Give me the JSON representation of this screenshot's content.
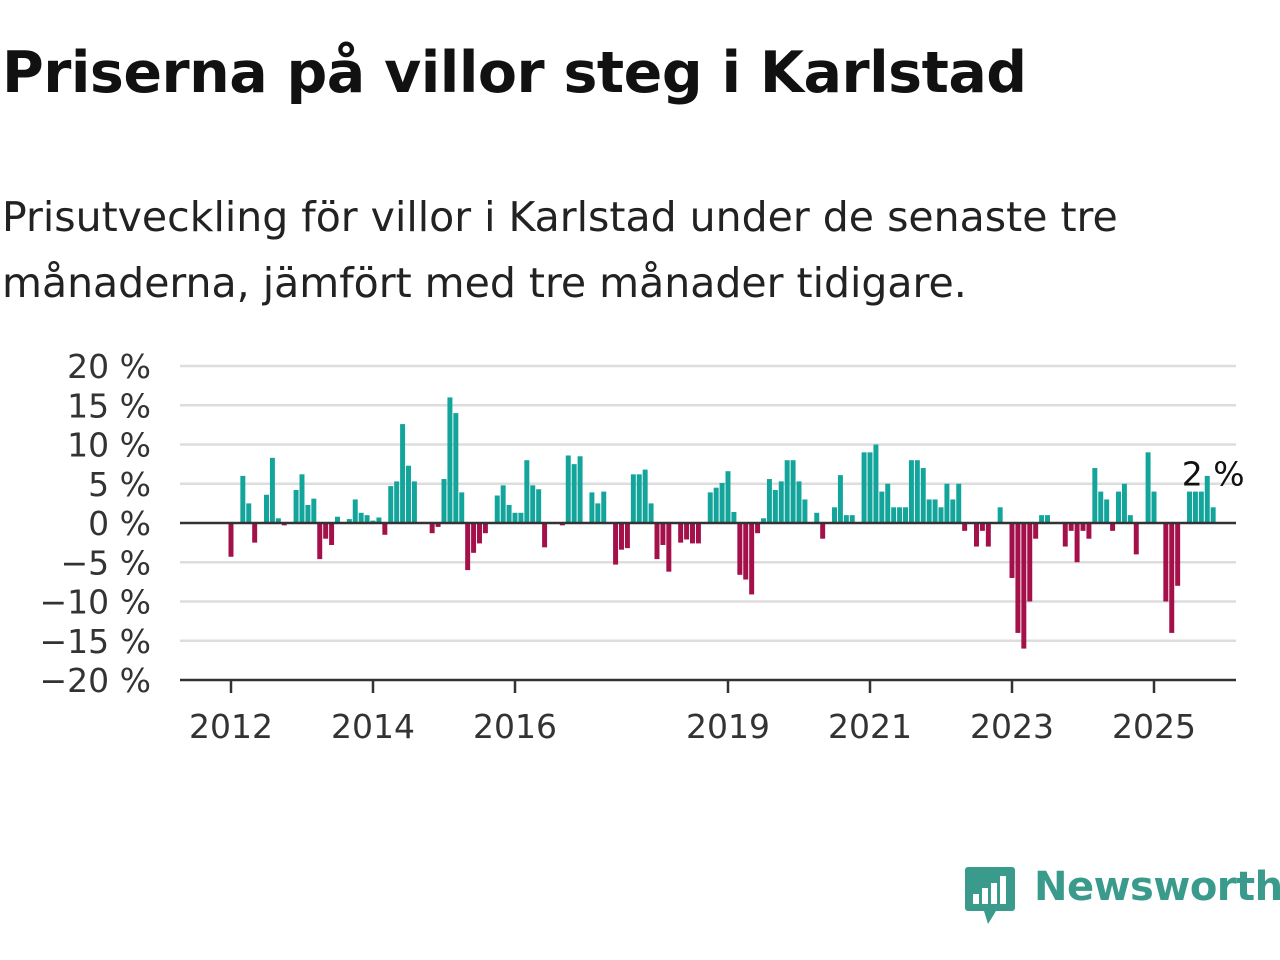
{
  "title": "Priserna på villor steg i Karlstad",
  "subtitle": "Prisutveckling för villor i Karlstad under de senaste tre månaderna, jämfört med tre månader tidigare.",
  "brand": {
    "name": "Newsworthy",
    "icon": "newsworthy-bar-chart-icon",
    "color": "#3a9a8c"
  },
  "colors": {
    "positive": "#13a59b",
    "negative": "#a3104a",
    "grid": "#dddddd",
    "zero_line": "#333333"
  },
  "chart_data": {
    "type": "bar",
    "x_type": "monthly",
    "start": "2012-01",
    "end_label": "2 %",
    "ylim": [
      -20,
      20
    ],
    "yticks": [
      20,
      15,
      10,
      5,
      0,
      -5,
      -10,
      -15,
      -20
    ],
    "ytick_labels": [
      "20 %",
      "15 %",
      "10 %",
      "5 %",
      "0 %",
      "−5 %",
      "−10 %",
      "−15 %",
      "−20 %"
    ],
    "xticks": [
      "2012",
      "2014",
      "2016",
      "2019",
      "2021",
      "2023",
      "2025"
    ],
    "grid": true,
    "values": [
      -4.3,
      0,
      6,
      2.5,
      -2.5,
      0,
      3.6,
      8.3,
      0.6,
      -0.3,
      0,
      4.2,
      6.2,
      2.3,
      3.1,
      -4.6,
      -2,
      -2.8,
      0.8,
      0,
      0.5,
      3,
      1.3,
      1,
      0.3,
      0.7,
      -1.5,
      4.7,
      5.3,
      12.6,
      7.3,
      5.3,
      0,
      0,
      -1.3,
      -0.5,
      5.6,
      16,
      14,
      3.9,
      -6,
      -3.8,
      -2.6,
      -1.3,
      0,
      3.5,
      4.8,
      2.3,
      1.3,
      1.3,
      8,
      4.8,
      4.3,
      -3.1,
      0,
      0,
      -0.3,
      8.6,
      7.5,
      8.5,
      0,
      3.9,
      2.5,
      4,
      0,
      -5.3,
      -3.4,
      -3.2,
      6.2,
      6.2,
      6.8,
      2.5,
      -4.6,
      -2.8,
      -6.2,
      0,
      -2.5,
      -2.1,
      -2.6,
      -2.6,
      0,
      3.9,
      4.5,
      5.1,
      6.6,
      1.4,
      -6.6,
      -7.2,
      -9.1,
      -1.3,
      0.6,
      5.6,
      4.2,
      5.3,
      8,
      8,
      5.3,
      3,
      0,
      1.3,
      -2,
      0,
      2,
      6.1,
      1,
      1,
      0,
      9,
      9,
      10,
      4,
      5,
      2,
      2,
      2,
      8,
      8,
      7,
      3,
      3,
      2,
      5,
      3,
      5,
      -1,
      0,
      -3,
      -1,
      -3,
      0,
      2,
      0,
      -7,
      -14,
      -16,
      -10,
      -2,
      1,
      1,
      0,
      0,
      -3,
      -1,
      -5,
      -1,
      -2,
      7,
      4,
      3,
      -1,
      4,
      5,
      1,
      -4,
      0,
      9,
      4,
      0,
      -10,
      -14,
      -8,
      0,
      4,
      4,
      4,
      6,
      2
    ]
  }
}
